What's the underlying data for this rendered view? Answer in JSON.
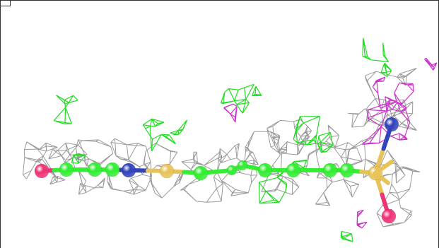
{
  "scene": {
    "kind": "electron density map with ball-and-stick ligand",
    "colors": {
      "background": "#ffffff",
      "density_mesh": "#9a9a9a",
      "positive_difference_mesh": "#22dd22",
      "negative_difference_mesh": "#cc33cc",
      "carbon": "#33ee33",
      "nitrogen": "#3344bb",
      "oxygen": "#ee3377",
      "sulfur": "#e8c35a"
    },
    "ligand_atoms": [
      {
        "element": "O"
      },
      {
        "element": "C"
      },
      {
        "element": "C"
      },
      {
        "element": "C"
      },
      {
        "element": "N"
      },
      {
        "element": "S"
      },
      {
        "element": "C"
      },
      {
        "element": "C"
      },
      {
        "element": "C"
      },
      {
        "element": "C"
      },
      {
        "element": "C"
      },
      {
        "element": "C"
      },
      {
        "element": "C"
      },
      {
        "element": "S"
      },
      {
        "element": "N"
      },
      {
        "element": "O"
      }
    ]
  }
}
